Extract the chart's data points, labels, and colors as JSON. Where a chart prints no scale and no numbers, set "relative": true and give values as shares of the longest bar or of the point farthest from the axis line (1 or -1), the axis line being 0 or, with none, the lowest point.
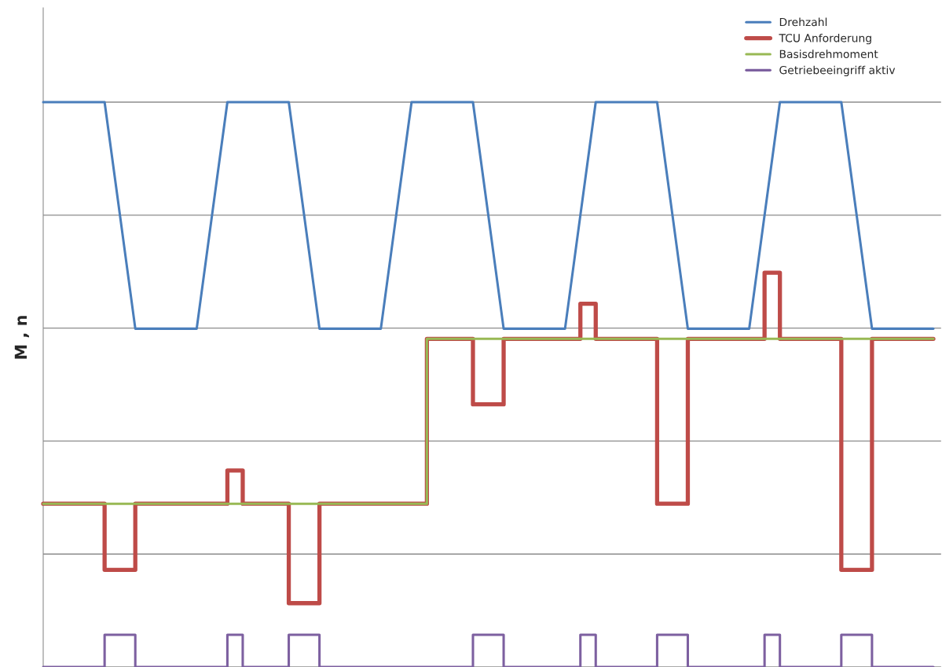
{
  "chart_data": {
    "type": "line",
    "relative": true,
    "ylabel": "M , n",
    "grid": "y",
    "legend": "top right",
    "tick_labels": false,
    "categories": [
      null,
      null,
      null,
      null,
      null,
      null,
      null,
      null,
      null,
      null,
      null,
      null,
      null,
      null,
      null,
      null,
      null,
      null,
      null,
      null,
      null,
      null,
      null,
      null,
      null,
      null,
      null,
      null,
      null,
      null,
      null,
      null,
      null,
      null,
      null,
      null,
      null,
      null,
      null,
      null,
      null,
      null,
      null,
      null,
      null,
      null,
      null,
      null,
      null,
      null,
      null,
      null,
      null,
      null,
      null,
      null,
      null,
      null,
      null
    ],
    "series": [
      {
        "name": "Drehzahl",
        "color": "#4a7ebb",
        "values": [
          1,
          1,
          1,
          1,
          1,
          0.8,
          0.599,
          0.599,
          0.599,
          0.599,
          0.599,
          0.8,
          1,
          1,
          1,
          1,
          1,
          0.8,
          0.599,
          0.599,
          0.599,
          0.599,
          0.599,
          0.8,
          1,
          1,
          1,
          1,
          1,
          0.8,
          0.599,
          0.599,
          0.599,
          0.599,
          0.599,
          0.8,
          1,
          1,
          1,
          1,
          1,
          0.8,
          0.599,
          0.599,
          0.599,
          0.599,
          0.599,
          0.8,
          1,
          1,
          1,
          1,
          1,
          0.8,
          0.599,
          0.599,
          0.599,
          0.599,
          0.599
        ]
      },
      {
        "name": "TCU Anforderung",
        "color": "#be4b48",
        "type": "step",
        "values": [
          0.289,
          0.289,
          0.289,
          0.289,
          0.172,
          0.172,
          0.289,
          0.289,
          0.289,
          0.289,
          0.289,
          0.289,
          0.348,
          0.289,
          0.289,
          0.289,
          0.113,
          0.113,
          0.289,
          0.289,
          0.289,
          0.289,
          0.289,
          0.289,
          0.289,
          0.581,
          0.581,
          0.581,
          0.465,
          0.465,
          0.581,
          0.581,
          0.581,
          0.581,
          0.581,
          0.643,
          0.581,
          0.581,
          0.581,
          0.581,
          0.289,
          0.289,
          0.581,
          0.581,
          0.581,
          0.581,
          0.581,
          0.698,
          0.581,
          0.581,
          0.581,
          0.581,
          0.172,
          0.172,
          0.581,
          0.581,
          0.581,
          0.581,
          0.581
        ]
      },
      {
        "name": "Basisdrehmoment",
        "color": "#98b954",
        "type": "step",
        "values": [
          0.289,
          0.289,
          0.289,
          0.289,
          0.289,
          0.289,
          0.289,
          0.289,
          0.289,
          0.289,
          0.289,
          0.289,
          0.289,
          0.289,
          0.289,
          0.289,
          0.289,
          0.289,
          0.289,
          0.289,
          0.289,
          0.289,
          0.289,
          0.289,
          0.289,
          0.581,
          0.581,
          0.581,
          0.581,
          0.581,
          0.581,
          0.581,
          0.581,
          0.581,
          0.581,
          0.581,
          0.581,
          0.581,
          0.581,
          0.581,
          0.581,
          0.581,
          0.581,
          0.581,
          0.581,
          0.581,
          0.581,
          0.581,
          0.581,
          0.581,
          0.581,
          0.581,
          0.581,
          0.581,
          0.581,
          0.581,
          0.581,
          0.581,
          0.581
        ]
      },
      {
        "name": "Getriebeeingriff aktiv",
        "color": "#7d60a0",
        "type": "step",
        "values": [
          0,
          0,
          0,
          0,
          0.057,
          0.057,
          0,
          0,
          0,
          0,
          0,
          0,
          0.057,
          0,
          0,
          0,
          0.057,
          0.057,
          0,
          0,
          0,
          0,
          0,
          0,
          0,
          0,
          0,
          0,
          0.057,
          0.057,
          0,
          0,
          0,
          0,
          0,
          0.057,
          0,
          0,
          0,
          0,
          0.057,
          0.057,
          0,
          0,
          0,
          0,
          0,
          0.057,
          0,
          0,
          0,
          0,
          0.057,
          0.057,
          0,
          0,
          0,
          0,
          0
        ]
      }
    ]
  }
}
